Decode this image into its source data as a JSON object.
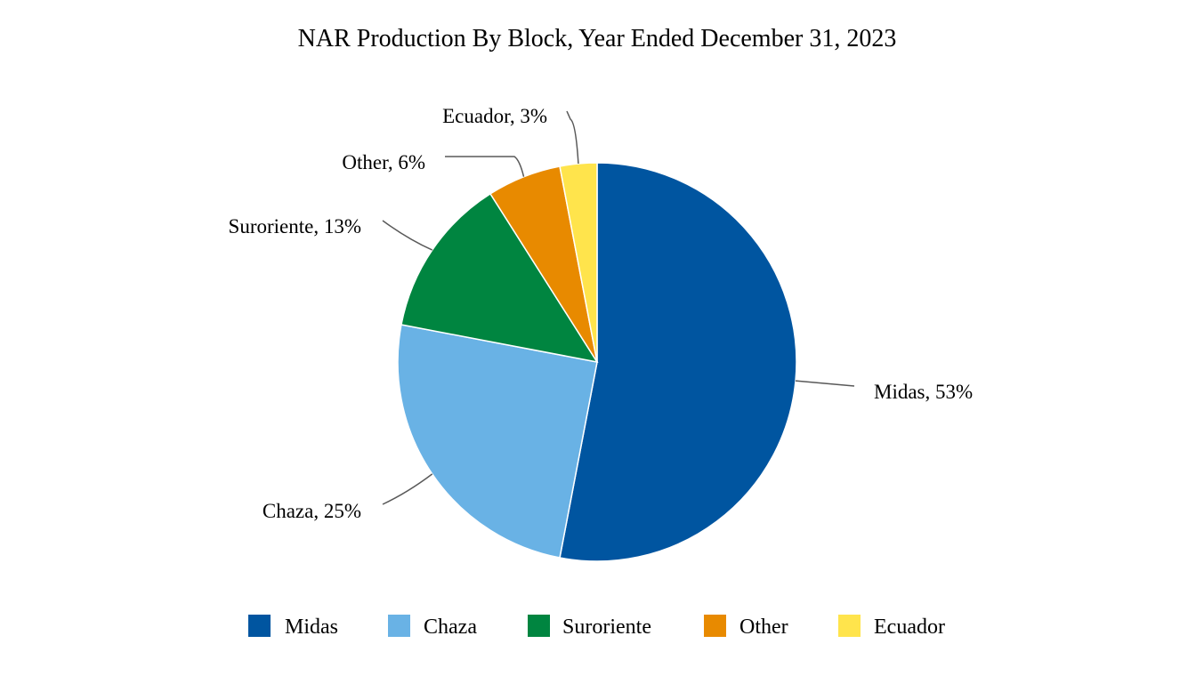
{
  "chart_data": {
    "type": "pie",
    "title": "NAR Production By Block, Year Ended December 31, 2023",
    "categories": [
      "Midas",
      "Chaza",
      "Suroriente",
      "Other",
      "Ecuador"
    ],
    "values": [
      53,
      25,
      13,
      6,
      3
    ],
    "unit": "%",
    "data_labels": [
      "Midas, 53%",
      "Chaza, 25%",
      "Suroriente, 13%",
      "Other, 6%",
      "Ecuador, 3%"
    ],
    "colors": [
      "#0055A0",
      "#69B2E5",
      "#008540",
      "#E88A00",
      "#FFE44C"
    ],
    "legend_position": "bottom"
  }
}
